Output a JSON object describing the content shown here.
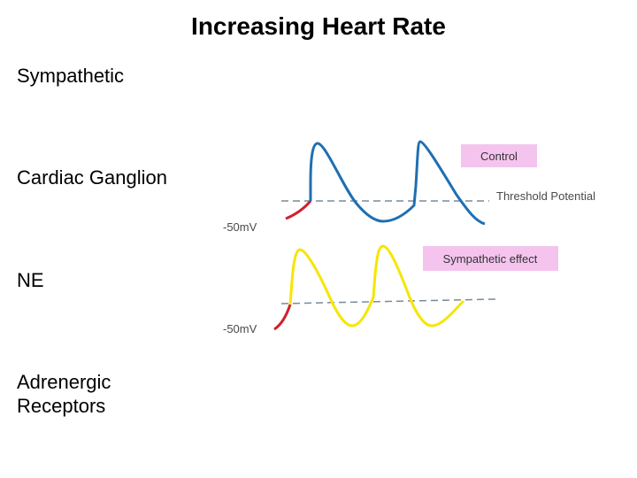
{
  "slide": {
    "title": "Increasing Heart Rate",
    "left_labels": [
      "Sympathetic",
      "Cardiac Ganglion",
      "NE",
      "Adrenergic\nReceptors"
    ]
  },
  "figure": {
    "control_label": "Control",
    "sympathetic_label": "Sympathetic effect",
    "threshold_label": "Threshold Potential",
    "voltage_label_top": "-50mV",
    "voltage_label_bottom": "-50mV",
    "colors": {
      "control_wave": "#1f6fb2",
      "sympathetic_wave": "#f5e600",
      "prepotential": "#d0202e",
      "threshold_line": "#7a8a99",
      "label_box": "#f4c4ee"
    }
  }
}
